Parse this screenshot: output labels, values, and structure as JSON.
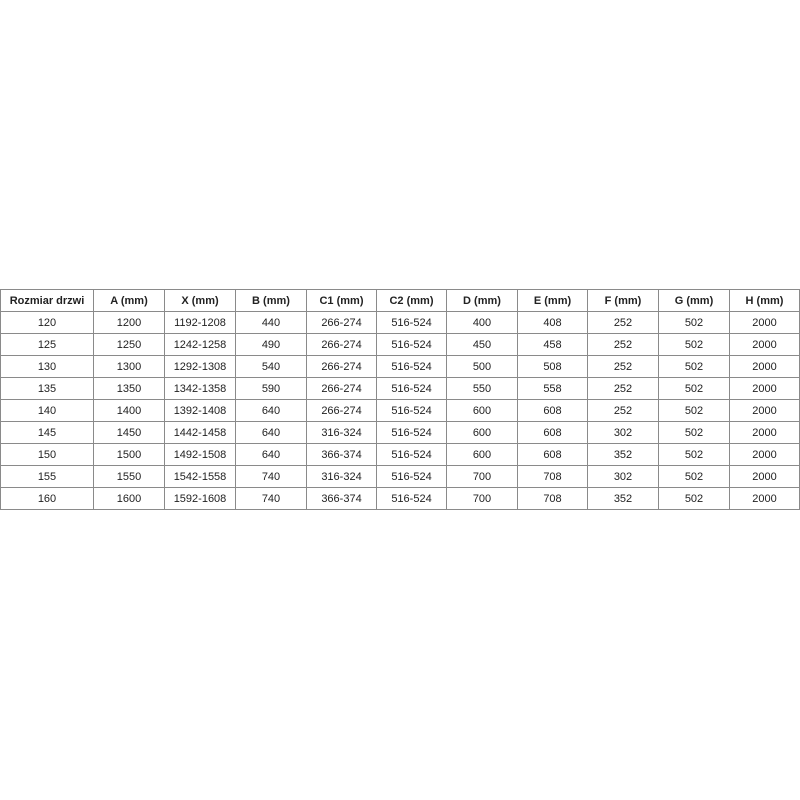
{
  "table": {
    "headers": [
      "Rozmiar drzwi",
      "A (mm)",
      "X (mm)",
      "B (mm)",
      "C1 (mm)",
      "C2 (mm)",
      "D (mm)",
      "E (mm)",
      "F (mm)",
      "G (mm)",
      "H (mm)"
    ],
    "rows": [
      [
        "120",
        "1200",
        "1192-1208",
        "440",
        "266-274",
        "516-524",
        "400",
        "408",
        "252",
        "502",
        "2000"
      ],
      [
        "125",
        "1250",
        "1242-1258",
        "490",
        "266-274",
        "516-524",
        "450",
        "458",
        "252",
        "502",
        "2000"
      ],
      [
        "130",
        "1300",
        "1292-1308",
        "540",
        "266-274",
        "516-524",
        "500",
        "508",
        "252",
        "502",
        "2000"
      ],
      [
        "135",
        "1350",
        "1342-1358",
        "590",
        "266-274",
        "516-524",
        "550",
        "558",
        "252",
        "502",
        "2000"
      ],
      [
        "140",
        "1400",
        "1392-1408",
        "640",
        "266-274",
        "516-524",
        "600",
        "608",
        "252",
        "502",
        "2000"
      ],
      [
        "145",
        "1450",
        "1442-1458",
        "640",
        "316-324",
        "516-524",
        "600",
        "608",
        "302",
        "502",
        "2000"
      ],
      [
        "150",
        "1500",
        "1492-1508",
        "640",
        "366-374",
        "516-524",
        "600",
        "608",
        "352",
        "502",
        "2000"
      ],
      [
        "155",
        "1550",
        "1542-1558",
        "740",
        "316-324",
        "516-524",
        "700",
        "708",
        "302",
        "502",
        "2000"
      ],
      [
        "160",
        "1600",
        "1592-1608",
        "740",
        "366-374",
        "516-524",
        "700",
        "708",
        "352",
        "502",
        "2000"
      ]
    ]
  }
}
